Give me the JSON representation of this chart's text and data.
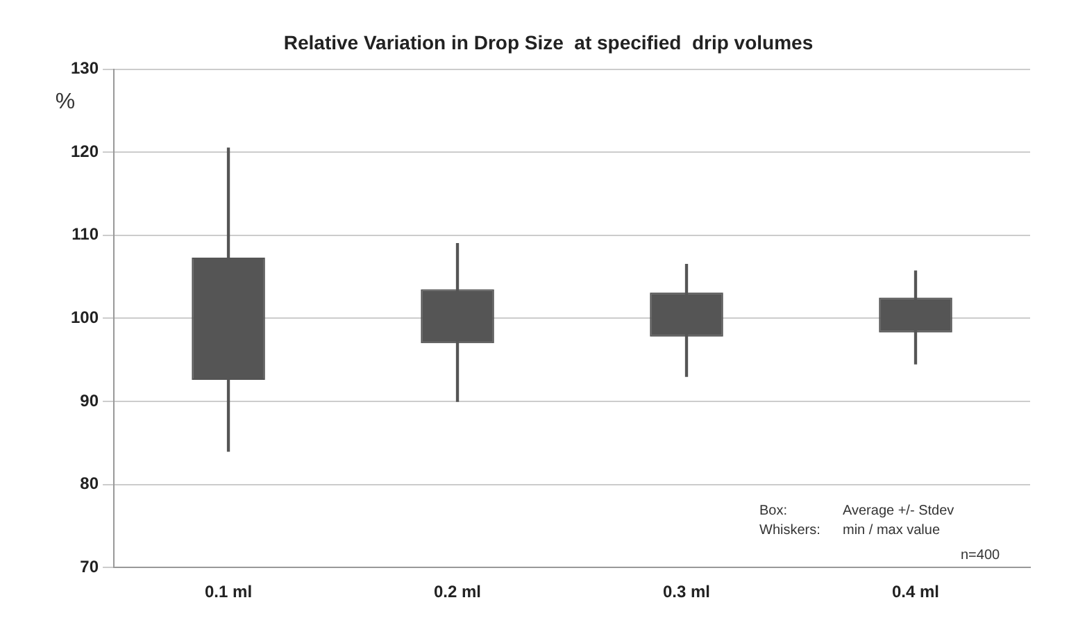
{
  "chart_data": {
    "type": "candlestick",
    "title": "Relative Variation in Drop Size  at specified  drip volumes",
    "ylabel": "%",
    "categories": [
      "0.1 ml",
      "0.2 ml",
      "0.3 ml",
      "0.4 ml"
    ],
    "ohlc": [
      [
        92.6,
        120.5,
        84.0,
        107.3
      ],
      [
        97.0,
        109.0,
        90.0,
        103.5
      ],
      [
        97.8,
        106.5,
        93.0,
        103.1
      ],
      [
        98.3,
        105.7,
        94.5,
        102.5
      ]
    ],
    "color": "#555555",
    "ylim": [
      70,
      130
    ],
    "yticks": [
      70,
      80,
      90,
      100,
      110,
      120,
      130
    ],
    "grid": "y",
    "annotations": [
      "Box:",
      "Whiskers:",
      "Average +/- Stdev",
      "min / max value",
      "n=400"
    ]
  }
}
